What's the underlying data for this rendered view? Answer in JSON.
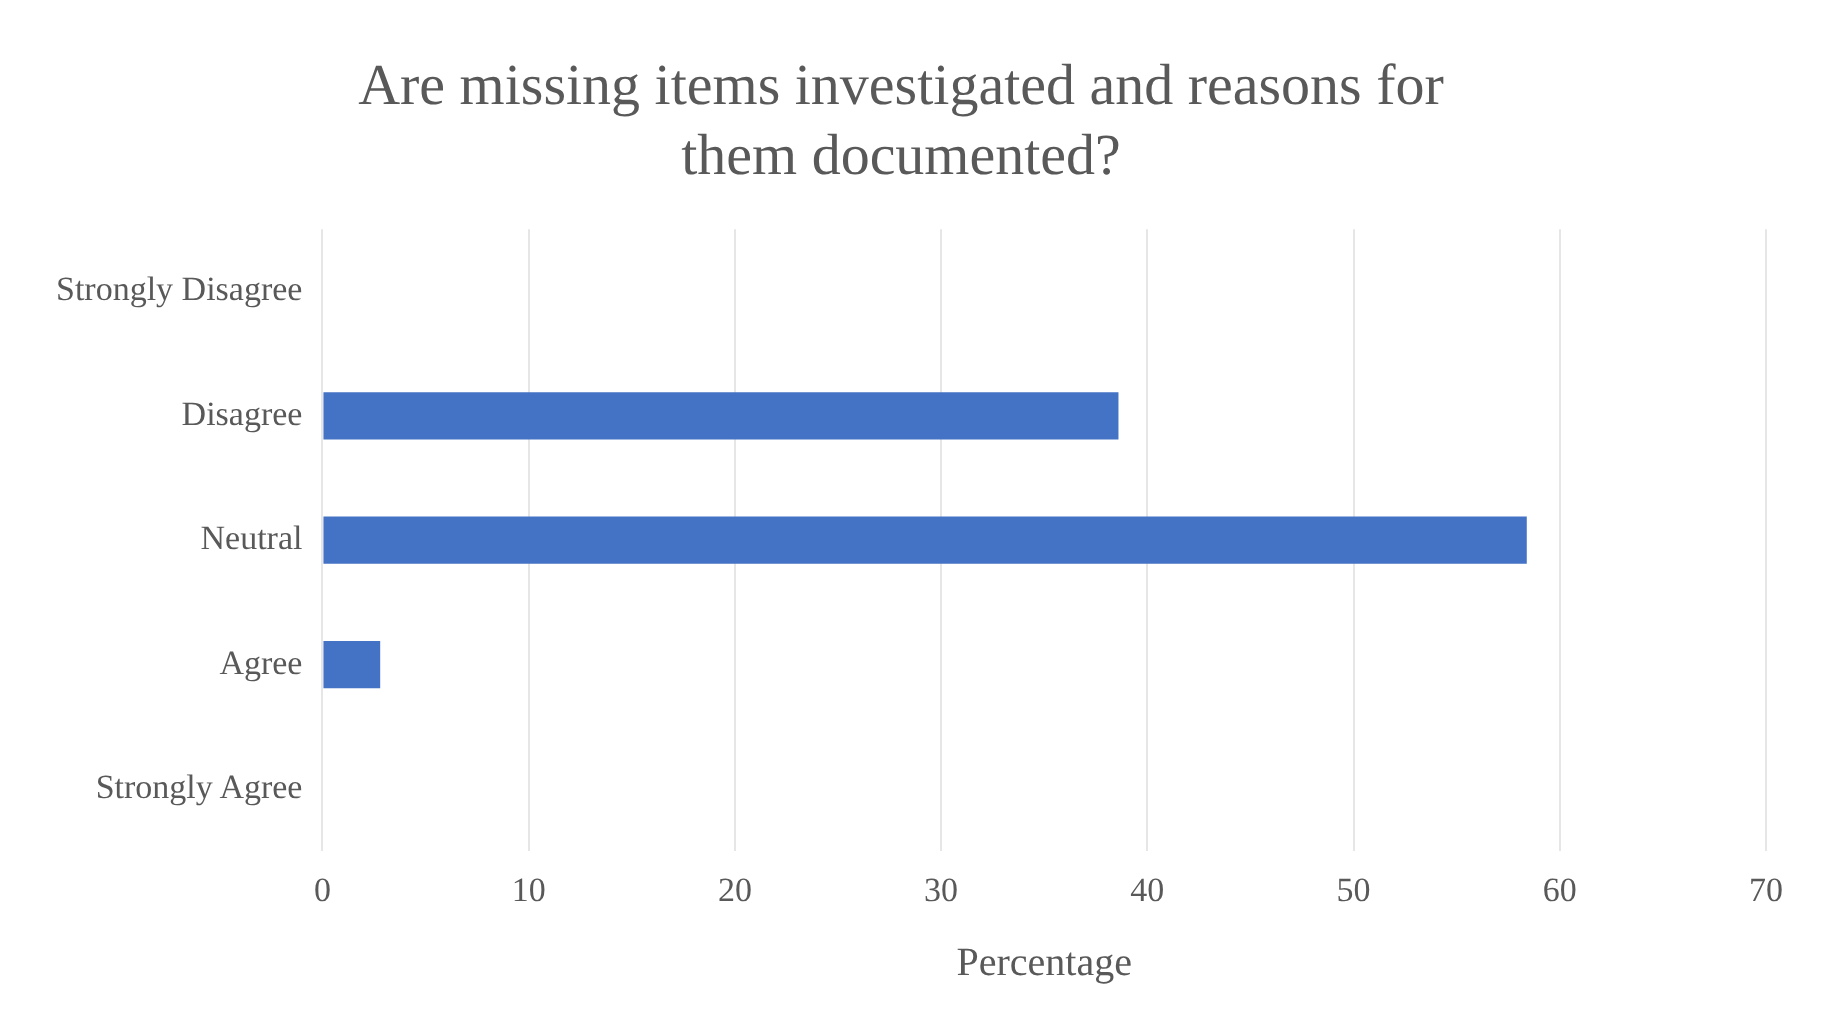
{
  "chart_data": {
    "type": "bar",
    "orientation": "horizontal",
    "title": [
      "Are missing items investigated and reasons for",
      "them documented?"
    ],
    "xlabel": "Percentage",
    "categories": [
      "Strongly Disagree",
      "Disagree",
      "Neutral",
      "Agree",
      "Strongly Agree"
    ],
    "values": [
      0,
      38.6,
      58.4,
      2.8,
      0
    ],
    "color": "#4472c4",
    "xlim": [
      0,
      70
    ],
    "xticks": [
      0,
      10,
      20,
      30,
      40,
      50,
      60,
      70
    ],
    "grid": "x"
  }
}
